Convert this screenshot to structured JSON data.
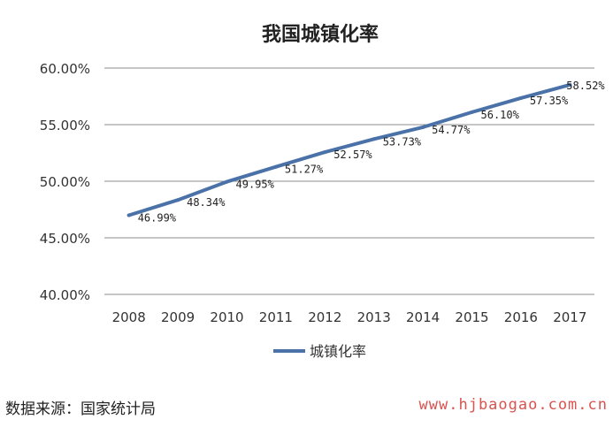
{
  "chart_data": {
    "type": "line",
    "title": "我国城镇化率",
    "xlabel": "",
    "ylabel": "",
    "categories": [
      "2008",
      "2009",
      "2010",
      "2011",
      "2012",
      "2013",
      "2014",
      "2015",
      "2016",
      "2017"
    ],
    "series": [
      {
        "name": "城镇化率",
        "values": [
          46.99,
          48.34,
          49.95,
          51.27,
          52.57,
          53.73,
          54.77,
          56.1,
          57.35,
          58.52
        ],
        "labels": [
          "46.99%",
          "48.34%",
          "49.95%",
          "51.27%",
          "52.57%",
          "53.73%",
          "54.77%",
          "56.10%",
          "57.35%",
          "58.52%"
        ],
        "color": "#4a72a8"
      }
    ],
    "ylim": [
      40,
      60
    ],
    "yticks": [
      40,
      45,
      50,
      55,
      60
    ],
    "ytick_labels": [
      "40.00%",
      "45.00%",
      "50.00%",
      "55.00%",
      "60.00%"
    ],
    "grid": true,
    "legend_position": "bottom"
  },
  "source_note": "数据来源：国家统计局",
  "watermark": "www.hjbaogao.com.cn"
}
